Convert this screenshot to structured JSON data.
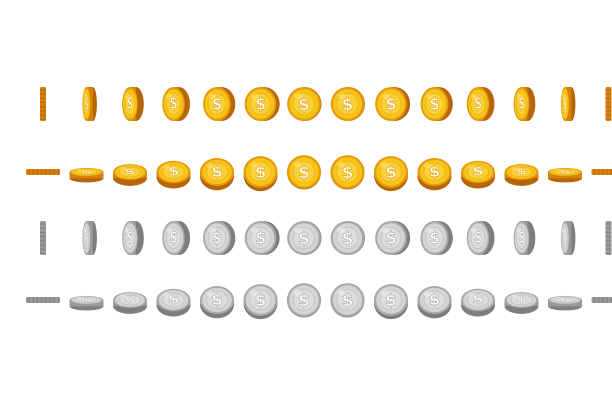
{
  "sprite_sheet": {
    "rows": [
      {
        "id": "gold-vertical-spin",
        "metal": "gold",
        "rotation_axis": "vertical",
        "frames": 14
      },
      {
        "id": "gold-horizontal-flip",
        "metal": "gold",
        "rotation_axis": "horizontal",
        "frames": 14
      },
      {
        "id": "silver-vertical-spin",
        "metal": "silver",
        "rotation_axis": "vertical",
        "frames": 14
      },
      {
        "id": "silver-horizontal-flip",
        "metal": "silver",
        "rotation_axis": "horizontal",
        "frames": 14
      }
    ],
    "symbol": "$"
  },
  "colors": {
    "gold": {
      "face": "#F7C41A",
      "inner": "#F9D23A",
      "rim": "#E59A0C",
      "edge": "#D9800A",
      "edge_dark": "#B8650A",
      "highlight": "#FFE27A",
      "symbol": "#FFFFFF"
    },
    "silver": {
      "face": "#D4D4D4",
      "inner": "#DDDDDD",
      "rim": "#A9A9A9",
      "edge": "#9A9A9A",
      "edge_dark": "#7E7E7E",
      "highlight": "#EFEFEF",
      "symbol": "#FFFFFF"
    }
  }
}
